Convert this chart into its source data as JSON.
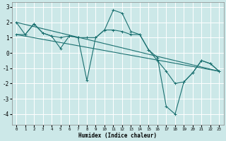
{
  "xlabel": "Humidex (Indice chaleur)",
  "bg_color": "#cce8e8",
  "grid_color": "#ffffff",
  "line_color": "#1a7070",
  "xlim": [
    -0.5,
    23.5
  ],
  "ylim": [
    -4.7,
    3.3
  ],
  "yticks": [
    3,
    2,
    1,
    0,
    -1,
    -2,
    -3,
    -4
  ],
  "xticks": [
    0,
    1,
    2,
    3,
    4,
    5,
    6,
    7,
    8,
    9,
    10,
    11,
    12,
    13,
    14,
    15,
    16,
    17,
    18,
    19,
    20,
    21,
    22,
    23
  ],
  "lines": [
    {
      "x": [
        0,
        1,
        2,
        3,
        4,
        5,
        6,
        7,
        8,
        9,
        10,
        11,
        12,
        13,
        14,
        15,
        16,
        17,
        18,
        19,
        20,
        21,
        22,
        23
      ],
      "y": [
        2.0,
        1.2,
        1.9,
        1.3,
        1.1,
        0.3,
        1.1,
        1.0,
        -1.8,
        1.0,
        1.5,
        2.8,
        2.6,
        1.4,
        1.2,
        0.2,
        -0.5,
        -1.2,
        -2.0,
        -1.9,
        -1.3,
        -0.5,
        -0.7,
        -1.2
      ]
    },
    {
      "x": [
        0,
        23
      ],
      "y": [
        2.0,
        -1.2
      ]
    },
    {
      "x": [
        0,
        23
      ],
      "y": [
        1.2,
        -1.2
      ]
    },
    {
      "x": [
        0,
        1,
        2,
        3,
        4,
        5,
        6,
        7,
        8,
        9,
        10,
        11,
        12,
        13,
        14,
        15,
        16,
        17,
        18,
        19,
        20,
        21,
        22,
        23
      ],
      "y": [
        1.2,
        1.2,
        1.9,
        1.3,
        1.1,
        1.0,
        1.1,
        1.0,
        1.0,
        1.0,
        1.5,
        1.5,
        1.4,
        1.2,
        1.2,
        0.2,
        -0.3,
        -3.5,
        -4.0,
        -1.9,
        -1.3,
        -0.5,
        -0.7,
        -1.2
      ]
    }
  ]
}
